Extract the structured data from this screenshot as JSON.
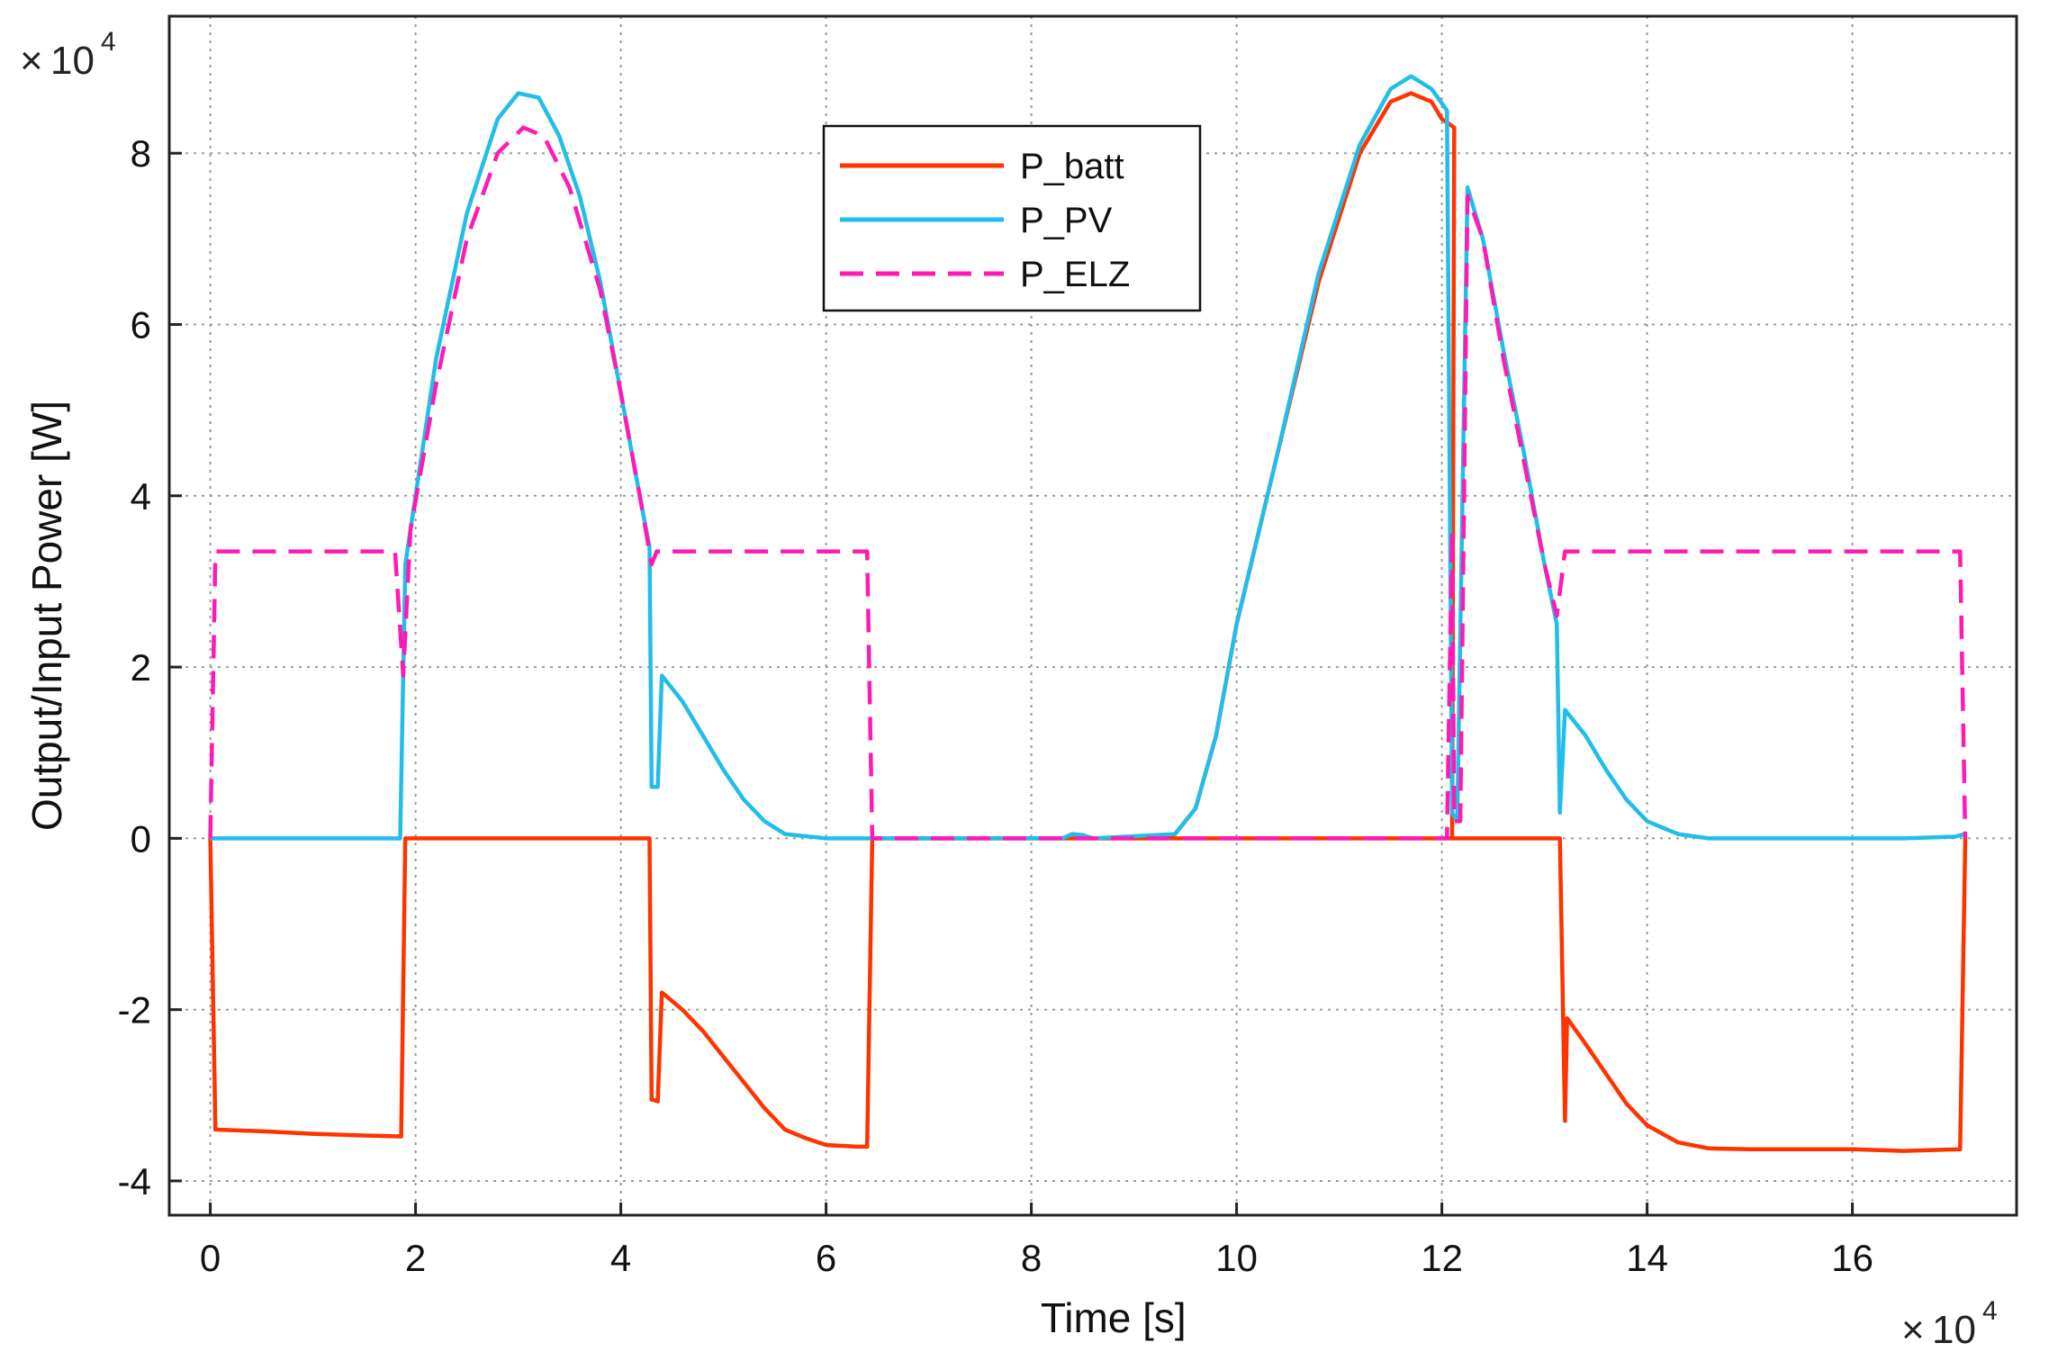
{
  "chart_data": {
    "type": "line",
    "title": "",
    "xlabel": "Time [s]",
    "ylabel": "Output/Input Power [W]",
    "x_exponent": {
      "base": "10",
      "power": "4"
    },
    "y_exponent": {
      "base": "10",
      "power": "4"
    },
    "xlim": [
      -0.4,
      17.6
    ],
    "ylim": [
      -4.4,
      9.6
    ],
    "x_ticks": [
      0,
      2,
      4,
      6,
      8,
      10,
      12,
      14,
      16
    ],
    "x_tick_labels": [
      "0",
      "2",
      "4",
      "6",
      "8",
      "10",
      "12",
      "14",
      "16"
    ],
    "y_ticks": [
      -4,
      -2,
      0,
      2,
      4,
      6,
      8
    ],
    "y_tick_labels": [
      "-4",
      "-2",
      "0",
      "2",
      "4",
      "6",
      "8"
    ],
    "grid": true,
    "legend_position": "top-center",
    "series": [
      {
        "name": "P_batt",
        "color": "#ff3300",
        "dash": "solid",
        "points": [
          [
            0,
            0
          ],
          [
            0.05,
            -3.4
          ],
          [
            0.5,
            -3.42
          ],
          [
            1.0,
            -3.45
          ],
          [
            1.5,
            -3.47
          ],
          [
            1.86,
            -3.48
          ],
          [
            1.9,
            0
          ],
          [
            4.28,
            0
          ],
          [
            4.3,
            -3.05
          ],
          [
            4.36,
            -3.07
          ],
          [
            4.4,
            -1.8
          ],
          [
            4.6,
            -2.0
          ],
          [
            4.8,
            -2.25
          ],
          [
            5.0,
            -2.55
          ],
          [
            5.2,
            -2.85
          ],
          [
            5.4,
            -3.15
          ],
          [
            5.6,
            -3.4
          ],
          [
            5.8,
            -3.5
          ],
          [
            6.0,
            -3.58
          ],
          [
            6.3,
            -3.6
          ],
          [
            6.4,
            -3.6
          ],
          [
            6.45,
            0
          ],
          [
            12.1,
            0
          ],
          [
            12.12,
            8.3
          ],
          [
            12.0,
            8.4
          ],
          [
            11.9,
            8.6
          ],
          [
            11.7,
            8.7
          ],
          [
            11.5,
            8.6
          ],
          [
            11.2,
            8.0
          ],
          [
            10.8,
            6.5
          ],
          [
            10.4,
            4.5
          ],
          [
            10.0,
            2.5
          ],
          [
            9.8,
            1.2
          ],
          [
            9.6,
            0.35
          ],
          [
            9.4,
            0.05
          ],
          [
            9.2,
            0
          ],
          [
            12.12,
            0
          ],
          [
            13.15,
            0
          ],
          [
            13.2,
            -3.3
          ],
          [
            13.22,
            -2.1
          ],
          [
            13.4,
            -2.4
          ],
          [
            13.6,
            -2.75
          ],
          [
            13.8,
            -3.1
          ],
          [
            14.0,
            -3.35
          ],
          [
            14.3,
            -3.55
          ],
          [
            14.6,
            -3.62
          ],
          [
            15.0,
            -3.63
          ],
          [
            16.0,
            -3.63
          ],
          [
            16.5,
            -3.65
          ],
          [
            17.05,
            -3.63
          ],
          [
            17.1,
            0
          ]
        ]
      },
      {
        "name": "P_PV",
        "color": "#22bde8",
        "dash": "solid",
        "points": [
          [
            0,
            0
          ],
          [
            1.85,
            0
          ],
          [
            1.9,
            3.2
          ],
          [
            2.0,
            4.0
          ],
          [
            2.2,
            5.6
          ],
          [
            2.5,
            7.3
          ],
          [
            2.8,
            8.4
          ],
          [
            3.0,
            8.7
          ],
          [
            3.2,
            8.65
          ],
          [
            3.4,
            8.2
          ],
          [
            3.6,
            7.5
          ],
          [
            3.8,
            6.5
          ],
          [
            4.0,
            5.2
          ],
          [
            4.2,
            3.9
          ],
          [
            4.28,
            3.4
          ],
          [
            4.3,
            0.6
          ],
          [
            4.36,
            0.6
          ],
          [
            4.4,
            1.9
          ],
          [
            4.6,
            1.6
          ],
          [
            4.8,
            1.2
          ],
          [
            5.0,
            0.8
          ],
          [
            5.2,
            0.45
          ],
          [
            5.4,
            0.2
          ],
          [
            5.6,
            0.05
          ],
          [
            6.0,
            0
          ],
          [
            8.3,
            0
          ],
          [
            8.4,
            0.05
          ],
          [
            8.5,
            0.04
          ],
          [
            8.6,
            0
          ],
          [
            9.4,
            0.05
          ],
          [
            9.6,
            0.35
          ],
          [
            9.8,
            1.2
          ],
          [
            10.0,
            2.5
          ],
          [
            10.4,
            4.5
          ],
          [
            10.8,
            6.6
          ],
          [
            11.2,
            8.1
          ],
          [
            11.5,
            8.75
          ],
          [
            11.7,
            8.9
          ],
          [
            11.9,
            8.75
          ],
          [
            12.05,
            8.5
          ],
          [
            12.1,
            0.3
          ],
          [
            12.15,
            0.2
          ],
          [
            12.25,
            7.6
          ],
          [
            12.4,
            7.0
          ],
          [
            12.6,
            5.7
          ],
          [
            12.8,
            4.5
          ],
          [
            13.0,
            3.2
          ],
          [
            13.12,
            2.5
          ],
          [
            13.15,
            0.3
          ],
          [
            13.2,
            1.5
          ],
          [
            13.4,
            1.2
          ],
          [
            13.6,
            0.8
          ],
          [
            13.8,
            0.45
          ],
          [
            14.0,
            0.2
          ],
          [
            14.3,
            0.05
          ],
          [
            14.6,
            0
          ],
          [
            16.5,
            0
          ],
          [
            17.0,
            0.02
          ],
          [
            17.1,
            0.05
          ]
        ]
      },
      {
        "name": "P_ELZ",
        "color": "#ff1ab3",
        "dash": "dashed",
        "points": [
          [
            0,
            0
          ],
          [
            0.05,
            3.35
          ],
          [
            1.8,
            3.35
          ],
          [
            1.88,
            1.9
          ],
          [
            1.95,
            3.6
          ],
          [
            2.2,
            5.3
          ],
          [
            2.5,
            7.0
          ],
          [
            2.8,
            8.0
          ],
          [
            3.05,
            8.3
          ],
          [
            3.25,
            8.2
          ],
          [
            3.5,
            7.6
          ],
          [
            3.8,
            6.4
          ],
          [
            4.0,
            5.2
          ],
          [
            4.2,
            3.9
          ],
          [
            4.3,
            3.2
          ],
          [
            4.35,
            3.35
          ],
          [
            6.4,
            3.35
          ],
          [
            6.45,
            0
          ],
          [
            12.05,
            0
          ],
          [
            12.1,
            3.6
          ],
          [
            12.12,
            0.2
          ],
          [
            12.18,
            0.2
          ],
          [
            12.25,
            7.5
          ],
          [
            12.4,
            7.0
          ],
          [
            12.6,
            5.6
          ],
          [
            12.8,
            4.4
          ],
          [
            13.0,
            3.2
          ],
          [
            13.12,
            2.6
          ],
          [
            13.2,
            3.35
          ],
          [
            17.05,
            3.35
          ],
          [
            17.1,
            0
          ]
        ]
      }
    ]
  }
}
